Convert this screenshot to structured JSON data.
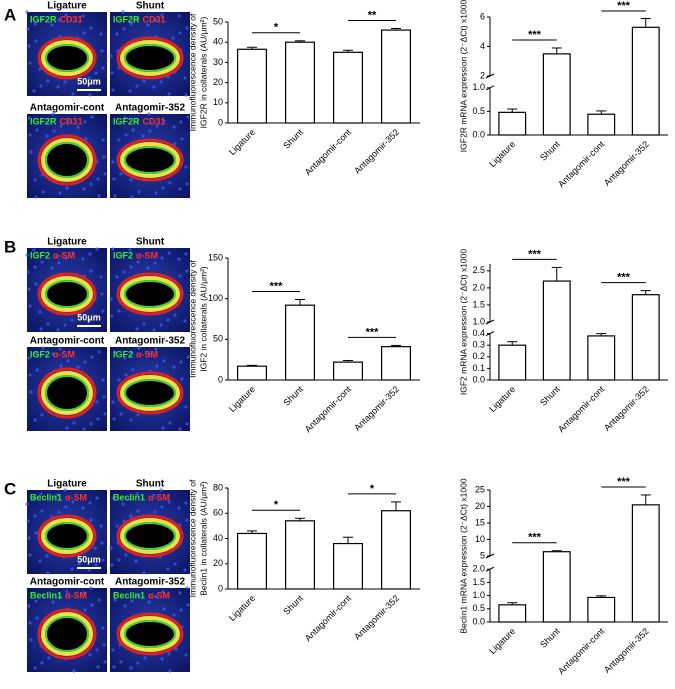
{
  "figure_panels": [
    {
      "label": "A",
      "stains": [
        "IGF2R",
        "CD31"
      ],
      "scale_bar": "50μm",
      "titles": [
        "Ligature",
        "Shunt",
        "Antagomir-cont",
        "Antagomir-352"
      ]
    },
    {
      "label": "B",
      "stains": [
        "IGF2",
        "α-SM"
      ],
      "scale_bar": "50μm",
      "titles": [
        "Ligature",
        "Shunt",
        "Antagomir-cont",
        "Antagomir-352"
      ]
    },
    {
      "label": "C",
      "stains": [
        "Beclin1",
        "α-SM"
      ],
      "scale_bar": "50μm",
      "titles": [
        "Ligature",
        "Shunt",
        "Antagomir-cont",
        "Antagomir-352"
      ]
    }
  ],
  "chart_data": [
    {
      "type": "bar",
      "y_label": [
        "Immunofluorescence density of",
        "IGF2R in collaterals (AU/μm²)"
      ],
      "categories": [
        "Ligature",
        "Shunt",
        "Antagomir-cont",
        "Antagomir-352"
      ],
      "values": [
        36.5,
        40,
        35,
        46
      ],
      "errors": [
        1,
        0.7,
        1,
        0.8
      ],
      "ylim": [
        0,
        50
      ],
      "yticks": [
        0,
        10,
        20,
        30,
        40,
        50
      ],
      "color": "#ffffff",
      "significance": [
        {
          "label": "*",
          "between": [
            0,
            1
          ]
        },
        {
          "label": "**",
          "between": [
            2,
            3
          ]
        }
      ]
    },
    {
      "type": "bar",
      "y_label": [
        "IGF2R mRNA expression (2⁻ΔCt) x1000"
      ],
      "categories": [
        "Ligature",
        "Shunt",
        "Antagomir-cont",
        "Antagomir-352"
      ],
      "values": [
        0.48,
        3.5,
        0.44,
        5.3
      ],
      "errors": [
        0.07,
        0.4,
        0.07,
        0.6
      ],
      "ylim": [
        0,
        6
      ],
      "ybreak": [
        1.0,
        2
      ],
      "yticks": [
        {
          "value": 0,
          "label": "0.0"
        },
        0.5,
        {
          "value": 1,
          "label": "1.0"
        },
        2,
        4,
        6
      ],
      "color": "#ffffff",
      "significance": [
        {
          "label": "***",
          "between": [
            0,
            1
          ]
        },
        {
          "label": "***",
          "between": [
            2,
            3
          ]
        }
      ]
    },
    {
      "type": "bar",
      "y_label": [
        "Immunofluorescence density of",
        "IGF2 in collaterals (AU/μm²)"
      ],
      "categories": [
        "Ligature",
        "Shunt",
        "Antagomir-cont",
        "Antagomir-352"
      ],
      "values": [
        17,
        92,
        22,
        41
      ],
      "errors": [
        1,
        7,
        2,
        1.5
      ],
      "ylim": [
        0,
        150
      ],
      "yticks": [
        0,
        50,
        100,
        150
      ],
      "color": "#ffffff",
      "significance": [
        {
          "label": "***",
          "between": [
            0,
            1
          ]
        },
        {
          "label": "***",
          "between": [
            2,
            3
          ]
        }
      ]
    },
    {
      "type": "bar",
      "y_label": [
        "IGF2 mRNA expression (2⁻ΔCt) x1000"
      ],
      "categories": [
        "Ligature",
        "Shunt",
        "Antagomir-cont",
        "Antagomir-352"
      ],
      "values": [
        0.3,
        2.2,
        0.38,
        1.8
      ],
      "errors": [
        0.03,
        0.4,
        0.02,
        0.12
      ],
      "ylim": [
        0,
        2.7
      ],
      "ybreak": [
        0.4,
        1.0
      ],
      "yticks": [
        {
          "value": 0,
          "label": "0.0"
        },
        0.1,
        0.2,
        0.3,
        0.4,
        {
          "value": 1,
          "label": "1.0"
        },
        1.5,
        {
          "value": 2,
          "label": "2.0"
        },
        2.5
      ],
      "color": "#ffffff",
      "significance": [
        {
          "label": "***",
          "between": [
            0,
            1
          ]
        },
        {
          "label": "***",
          "between": [
            2,
            3
          ]
        }
      ]
    },
    {
      "type": "bar",
      "y_label": [
        "Immunofluorescence density of",
        "Beclin1 in collaterals (AU/μm²)"
      ],
      "categories": [
        "Ligature",
        "Shunt",
        "Antagomir-cont",
        "Antagomir-352"
      ],
      "values": [
        44,
        54,
        36,
        62
      ],
      "errors": [
        2,
        2,
        5,
        7
      ],
      "ylim": [
        0,
        80
      ],
      "yticks": [
        0,
        20,
        40,
        60,
        80
      ],
      "color": "#ffffff",
      "significance": [
        {
          "label": "*",
          "between": [
            0,
            1
          ]
        },
        {
          "label": "*",
          "between": [
            2,
            3
          ]
        }
      ]
    },
    {
      "type": "bar",
      "y_label": [
        "Beclin1 mRNA expression (2⁻ΔCt) x1000"
      ],
      "categories": [
        "Ligature",
        "Shunt",
        "Antagomir-cont",
        "Antagomir-352"
      ],
      "values": [
        0.65,
        6.3,
        0.93,
        20.5
      ],
      "errors": [
        0.08,
        0.3,
        0.06,
        3
      ],
      "ylim": [
        0,
        25
      ],
      "ybreak": [
        2.0,
        5
      ],
      "yticks": [
        {
          "value": 0,
          "label": "0.0"
        },
        0.5,
        {
          "value": 1,
          "label": "1.0"
        },
        1.5,
        {
          "value": 2,
          "label": "2.0"
        },
        5,
        10,
        15,
        20,
        25
      ],
      "color": "#ffffff",
      "significance": [
        {
          "label": "***",
          "between": [
            0,
            1
          ]
        },
        {
          "label": "***",
          "between": [
            2,
            3
          ]
        }
      ]
    }
  ]
}
